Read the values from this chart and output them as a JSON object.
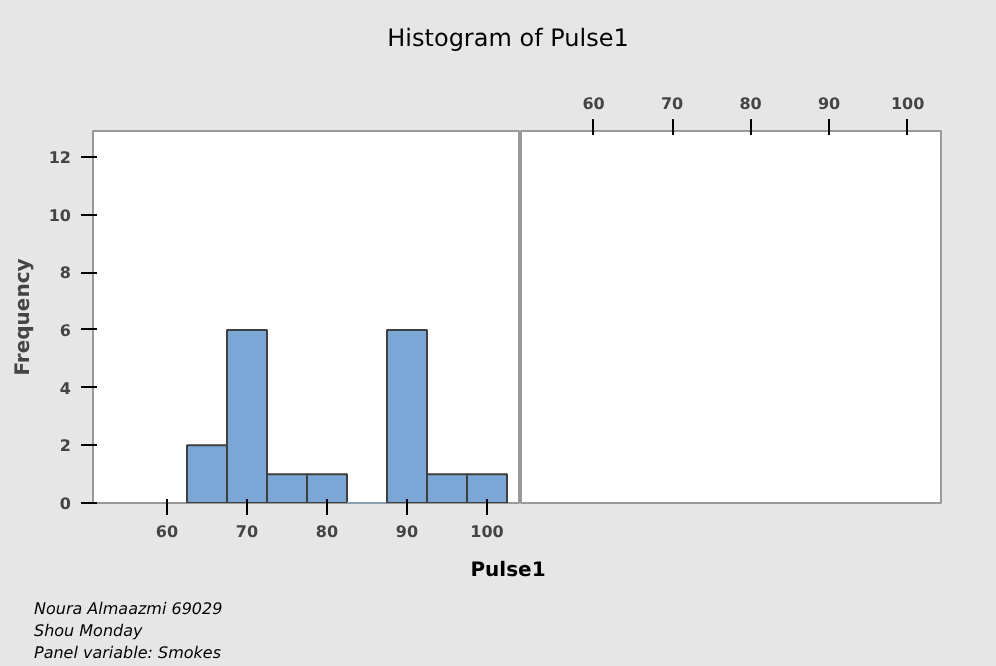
{
  "chart_data": [
    {
      "type": "histogram",
      "title": "Histogram of Pulse1",
      "xlabel": "Pulse1",
      "ylabel": "Frequency",
      "bins": [
        62.5,
        67.5,
        72.5,
        77.5,
        82.5,
        87.5,
        92.5,
        97.5,
        102.5
      ],
      "values": [
        2,
        6,
        1,
        1,
        0,
        6,
        1,
        1
      ],
      "color": "#7ba7d7",
      "xlim": [
        50.75,
        104.25
      ],
      "xticks": [
        60,
        70,
        80,
        90,
        100
      ],
      "ylim": [
        0,
        12.9
      ],
      "yticks": [
        0,
        2,
        4,
        6,
        8,
        10,
        12
      ],
      "annotations": [
        "Noura Almaazmi 69029",
        "Shou Monday",
        "Panel variable: Smokes"
      ]
    },
    {
      "type": "histogram",
      "xlim": [
        50.75,
        104.25
      ],
      "xticks": [
        60,
        70,
        80,
        90,
        100
      ],
      "ylim": [
        0,
        12.9
      ],
      "tick_labels": "x"
    }
  ]
}
